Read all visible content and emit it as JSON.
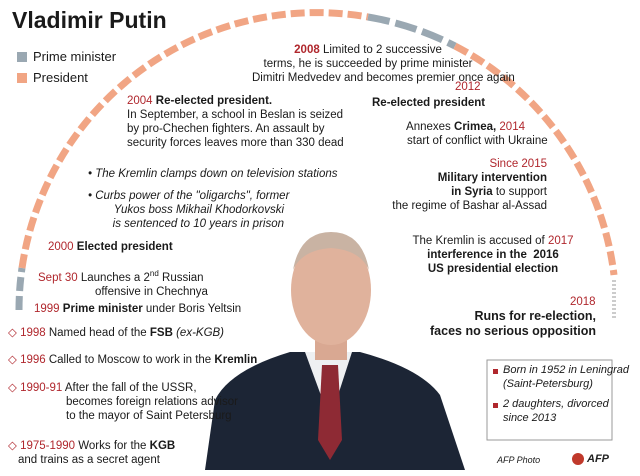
{
  "title": "Vladimir Putin",
  "legend": {
    "prime_minister": "Prime minister",
    "president": "President"
  },
  "y2008": {
    "year": "2008",
    "lines": [
      "Limited to 2 successive",
      "terms, he is succeeded by prime minister",
      "Dimitri Medvedev and becomes premier once again"
    ]
  },
  "y2004": {
    "year": "2004",
    "headline": "Re-elected president.",
    "lines": [
      "In September, a school in Beslan is seized",
      "by pro-Chechen fighters. An assault by",
      "security forces leaves more than 330 dead"
    ]
  },
  "bullets": [
    {
      "lines": [
        "The Kremlin clamps down on television stations"
      ]
    },
    {
      "lines": [
        "Curbs power of the \"oligarchs\", former",
        "Yukos boss Mikhail Khodorkovski",
        "is sentenced to 10 years in prison"
      ]
    }
  ],
  "y2000": {
    "year": "2000",
    "headline": "Elected president"
  },
  "sept30": {
    "date": "Sept 30",
    "lines": [
      "Launches a 2",
      "nd",
      "Russian",
      "offensive in Chechnya"
    ]
  },
  "y1999": {
    "year": "1999",
    "headline": "Prime minister",
    "text": "under Boris Yeltsin"
  },
  "y1998": {
    "year": "1998",
    "text": "Named head of the",
    "bold": "FSB",
    "italic": "(ex-KGB)"
  },
  "y1996": {
    "year": "1996",
    "text": "Called to Moscow to work in the",
    "bold": "Kremlin"
  },
  "y1990": {
    "year": "1990-91",
    "lines": [
      "After the fall of the USSR,",
      "becomes foreign relations advisor",
      "to the mayor of Saint Petersburg"
    ]
  },
  "y1975": {
    "year": "1975-1990",
    "text": "Works for the",
    "bold": "KGB",
    "line2": "and trains as a secret agent"
  },
  "y2012": {
    "year": "2012",
    "headline": "Re-elected president"
  },
  "y2014": {
    "text": "Annexes",
    "bold": "Crimea,",
    "year": "2014",
    "line2": "start of conflict with Ukraine"
  },
  "y2015": {
    "year": "Since 2015",
    "bold": [
      "Military intervention",
      "in Syria"
    ],
    "lines": [
      "to support",
      "the regime of Bashar al-Assad"
    ]
  },
  "y2017": {
    "text": "The Kremlin is accused of",
    "year": "2017",
    "bold": [
      "interference in the  2016",
      "US presidential election"
    ]
  },
  "y2018": {
    "year": "2018",
    "bold": [
      "Runs for re-election,",
      "faces no serious opposition"
    ]
  },
  "facts": [
    [
      "Born in 1952 in Leningrad",
      "(Saint-Petersburg)"
    ],
    [
      "2 daughters, divorced",
      "since 2013"
    ]
  ],
  "credit": "AFP Photo",
  "logo": "AFP"
}
